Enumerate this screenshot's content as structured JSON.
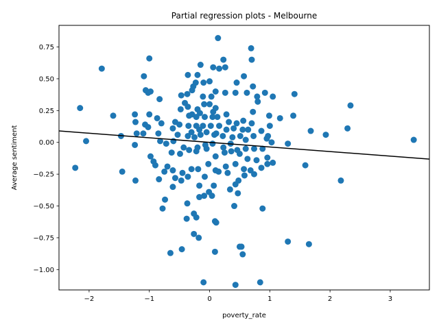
{
  "chart_data": {
    "type": "scatter",
    "title": "Partial regression plots - Melbourne",
    "xlabel": "poverty_rate",
    "ylabel": "Average sentiment",
    "xlim": [
      -2.5,
      3.65
    ],
    "ylim": [
      -1.16,
      0.92
    ],
    "xticks": [
      -2,
      -1,
      0,
      1,
      2,
      3
    ],
    "xtick_labels": [
      "−2",
      "−1",
      "0",
      "1",
      "2",
      "3"
    ],
    "yticks": [
      -1.0,
      -0.75,
      -0.5,
      -0.25,
      0.0,
      0.25,
      0.5,
      0.75
    ],
    "ytick_labels": [
      "−1.00",
      "−0.75",
      "−0.50",
      "−0.25",
      "0.00",
      "0.25",
      "0.50",
      "0.75"
    ],
    "grid": false,
    "colors": {
      "points": "#1f77b4",
      "fit_line": "#000000"
    },
    "fit_line": {
      "slope": -0.036,
      "intercept": 0.0
    },
    "series": [
      {
        "points": [
          [
            0.14,
            0.82
          ],
          [
            0.69,
            0.74
          ],
          [
            -1.0,
            0.66
          ],
          [
            0.7,
            0.65
          ],
          [
            0.23,
            0.65
          ],
          [
            -1.79,
            0.58
          ],
          [
            -0.15,
            0.61
          ],
          [
            0.06,
            0.59
          ],
          [
            0.16,
            0.58
          ],
          [
            0.26,
            0.59
          ],
          [
            -1.09,
            0.52
          ],
          [
            -0.36,
            0.53
          ],
          [
            -0.2,
            0.53
          ],
          [
            0.57,
            0.52
          ],
          [
            -0.23,
            0.47
          ],
          [
            -0.1,
            0.47
          ],
          [
            0.0,
            0.48
          ],
          [
            -0.27,
            0.44
          ],
          [
            0.45,
            0.47
          ],
          [
            0.72,
            0.44
          ],
          [
            -1.06,
            0.41
          ],
          [
            -1.02,
            0.39
          ],
          [
            -0.98,
            0.4
          ],
          [
            -0.29,
            0.41
          ],
          [
            0.1,
            0.4
          ],
          [
            0.26,
            0.39
          ],
          [
            0.43,
            0.39
          ],
          [
            0.62,
            0.39
          ],
          [
            0.79,
            0.36
          ],
          [
            0.92,
            0.39
          ],
          [
            1.05,
            0.36
          ],
          [
            1.41,
            0.38
          ],
          [
            -0.83,
            0.34
          ],
          [
            -0.47,
            0.37
          ],
          [
            -0.37,
            0.38
          ],
          [
            -0.11,
            0.36
          ],
          [
            0.03,
            0.36
          ],
          [
            0.8,
            0.32
          ],
          [
            -0.41,
            0.31
          ],
          [
            -0.36,
            0.28
          ],
          [
            -0.2,
            0.26
          ],
          [
            -0.09,
            0.3
          ],
          [
            0.0,
            0.3
          ],
          [
            0.1,
            0.27
          ],
          [
            -2.15,
            0.27
          ],
          [
            2.34,
            0.29
          ],
          [
            -0.48,
            0.26
          ],
          [
            -0.29,
            0.22
          ],
          [
            -0.16,
            0.23
          ],
          [
            0.06,
            0.24
          ],
          [
            0.28,
            0.22
          ],
          [
            0.72,
            0.24
          ],
          [
            -1.24,
            0.22
          ],
          [
            -1.0,
            0.22
          ],
          [
            -0.34,
            0.21
          ],
          [
            -0.22,
            0.2
          ],
          [
            -0.08,
            0.2
          ],
          [
            0.05,
            0.2
          ],
          [
            0.13,
            0.2
          ],
          [
            0.99,
            0.21
          ],
          [
            1.17,
            0.19
          ],
          [
            1.39,
            0.21
          ],
          [
            -1.6,
            0.21
          ],
          [
            -0.87,
            0.19
          ],
          [
            -1.23,
            0.16
          ],
          [
            -0.8,
            0.15
          ],
          [
            -0.57,
            0.16
          ],
          [
            -0.35,
            0.13
          ],
          [
            -0.22,
            0.13
          ],
          [
            -0.11,
            0.13
          ],
          [
            0.02,
            0.13
          ],
          [
            0.16,
            0.13
          ],
          [
            0.32,
            0.16
          ],
          [
            0.45,
            0.15
          ],
          [
            0.56,
            0.17
          ],
          [
            0.7,
            0.15
          ],
          [
            1.0,
            0.13
          ],
          [
            -1.07,
            0.14
          ],
          [
            -1.02,
            0.12
          ],
          [
            -0.61,
            0.11
          ],
          [
            -0.5,
            0.14
          ],
          [
            -0.3,
            0.08
          ],
          [
            -0.17,
            0.1
          ],
          [
            -0.05,
            0.08
          ],
          [
            0.11,
            0.07
          ],
          [
            0.28,
            0.1
          ],
          [
            0.4,
            0.11
          ],
          [
            0.55,
            0.1
          ],
          [
            0.64,
            0.1
          ],
          [
            0.73,
            0.05
          ],
          [
            0.86,
            0.09
          ],
          [
            0.97,
            0.05
          ],
          [
            1.68,
            0.09
          ],
          [
            1.93,
            0.06
          ],
          [
            2.29,
            0.11
          ],
          [
            -1.21,
            0.07
          ],
          [
            -1.1,
            0.07
          ],
          [
            -0.85,
            0.07
          ],
          [
            -0.53,
            0.06
          ],
          [
            -0.36,
            0.05
          ],
          [
            -0.25,
            0.04
          ],
          [
            -0.15,
            0.06
          ],
          [
            0.08,
            0.06
          ],
          [
            0.22,
            0.05
          ],
          [
            0.38,
            0.04
          ],
          [
            0.51,
            0.05
          ],
          [
            0.6,
            0.02
          ],
          [
            0.95,
            0.03
          ],
          [
            -1.47,
            0.05
          ],
          [
            -0.82,
            0.01
          ],
          [
            -0.72,
            -0.01
          ],
          [
            -0.6,
            0.01
          ],
          [
            -0.43,
            -0.04
          ],
          [
            -0.2,
            -0.04
          ],
          [
            -0.07,
            -0.02
          ],
          [
            0.05,
            -0.01
          ],
          [
            0.23,
            -0.04
          ],
          [
            0.35,
            -0.01
          ],
          [
            0.46,
            -0.06
          ],
          [
            0.6,
            -0.05
          ],
          [
            0.74,
            -0.05
          ],
          [
            0.88,
            -0.05
          ],
          [
            1.03,
            0.0
          ],
          [
            1.3,
            -0.01
          ],
          [
            -2.05,
            0.01
          ],
          [
            -1.24,
            -0.02
          ],
          [
            3.39,
            0.02
          ],
          [
            -0.98,
            -0.11
          ],
          [
            -0.93,
            -0.15
          ],
          [
            -0.63,
            -0.08
          ],
          [
            -0.49,
            -0.09
          ],
          [
            -0.34,
            -0.06
          ],
          [
            -0.22,
            -0.07
          ],
          [
            -0.05,
            -0.05
          ],
          [
            0.1,
            -0.11
          ],
          [
            0.25,
            -0.08
          ],
          [
            0.36,
            -0.07
          ],
          [
            0.5,
            -0.09
          ],
          [
            0.63,
            -0.13
          ],
          [
            0.78,
            -0.14
          ],
          [
            0.96,
            -0.12
          ],
          [
            1.05,
            -0.16
          ],
          [
            -0.9,
            -0.18
          ],
          [
            -0.7,
            -0.19
          ],
          [
            -0.61,
            -0.22
          ],
          [
            -0.45,
            -0.24
          ],
          [
            -0.3,
            -0.21
          ],
          [
            -0.19,
            -0.21
          ],
          [
            -0.02,
            -0.17
          ],
          [
            0.1,
            -0.22
          ],
          [
            0.27,
            -0.19
          ],
          [
            0.43,
            -0.17
          ],
          [
            0.57,
            -0.21
          ],
          [
            0.68,
            -0.22
          ],
          [
            0.86,
            -0.2
          ],
          [
            0.96,
            -0.17
          ],
          [
            1.59,
            -0.18
          ],
          [
            -2.23,
            -0.2
          ],
          [
            -1.45,
            -0.23
          ],
          [
            -0.75,
            -0.23
          ],
          [
            -0.57,
            -0.28
          ],
          [
            -0.36,
            -0.27
          ],
          [
            -0.08,
            -0.27
          ],
          [
            0.15,
            -0.23
          ],
          [
            0.3,
            -0.24
          ],
          [
            0.48,
            -0.3
          ],
          [
            0.58,
            -0.26
          ],
          [
            0.74,
            -0.25
          ],
          [
            -1.23,
            -0.3
          ],
          [
            -0.84,
            -0.29
          ],
          [
            -0.47,
            -0.3
          ],
          [
            -0.17,
            -0.34
          ],
          [
            0.07,
            -0.34
          ],
          [
            0.43,
            -0.33
          ],
          [
            0.47,
            -0.4
          ],
          [
            -0.61,
            -0.35
          ],
          [
            -0.01,
            -0.39
          ],
          [
            0.34,
            -0.37
          ],
          [
            2.18,
            -0.3
          ],
          [
            -0.74,
            -0.45
          ],
          [
            -0.17,
            -0.43
          ],
          [
            -0.09,
            -0.42
          ],
          [
            0.04,
            -0.42
          ],
          [
            -0.37,
            -0.48
          ],
          [
            0.41,
            -0.5
          ],
          [
            0.88,
            -0.52
          ],
          [
            -0.78,
            -0.52
          ],
          [
            -0.26,
            -0.56
          ],
          [
            -0.38,
            -0.6
          ],
          [
            -0.22,
            -0.59
          ],
          [
            0.09,
            -0.62
          ],
          [
            0.11,
            -0.63
          ],
          [
            -0.26,
            -0.72
          ],
          [
            -0.18,
            -0.75
          ],
          [
            1.3,
            -0.78
          ],
          [
            1.65,
            -0.8
          ],
          [
            -0.46,
            -0.84
          ],
          [
            -0.65,
            -0.87
          ],
          [
            0.09,
            -0.86
          ],
          [
            0.5,
            -0.82
          ],
          [
            0.53,
            -0.82
          ],
          [
            0.55,
            -0.88
          ],
          [
            -0.1,
            -1.1
          ],
          [
            0.84,
            -1.1
          ],
          [
            0.43,
            -1.12
          ]
        ]
      }
    ]
  }
}
